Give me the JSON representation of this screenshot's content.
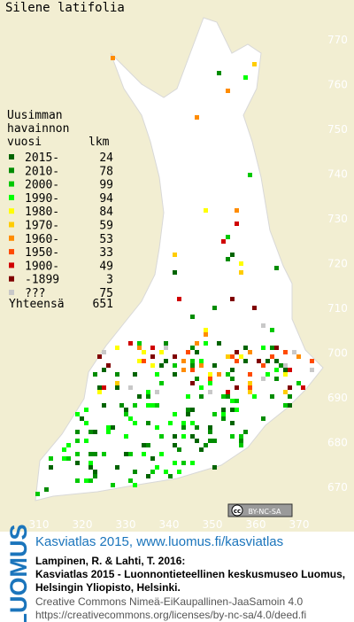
{
  "title": "Silene latifolia",
  "legend": {
    "heading": [
      "Uusimman",
      "havainnon"
    ],
    "year_header": "vuosi",
    "count_header": "lkm",
    "rows": [
      {
        "label": "2015-",
        "count": 24,
        "color": "#006400"
      },
      {
        "label": "2010-",
        "count": 78,
        "color": "#008c00"
      },
      {
        "label": "2000-",
        "count": 99,
        "color": "#00c800"
      },
      {
        "label": "1990-",
        "count": 94,
        "color": "#00ff00"
      },
      {
        "label": "1980-",
        "count": 84,
        "color": "#ffff00"
      },
      {
        "label": "1970-",
        "count": 59,
        "color": "#ffcc00"
      },
      {
        "label": "1960-",
        "count": 53,
        "color": "#ff8c00"
      },
      {
        "label": "1950-",
        "count": 33,
        "color": "#ff4a00"
      },
      {
        "label": "1900-",
        "count": 49,
        "color": "#d00000"
      },
      {
        "label": "-1899",
        "count": 3,
        "color": "#800000"
      },
      {
        "label": "???",
        "count": 75,
        "color": "#c8c8c8"
      }
    ],
    "total_label": "Yhteensä",
    "total": 651
  },
  "grid": {
    "x_labels": [
      310,
      320,
      330,
      340,
      350,
      360,
      370
    ],
    "y_labels": [
      670,
      680,
      690,
      700,
      710,
      720,
      730,
      740,
      750,
      760,
      770
    ]
  },
  "license_badge": {
    "cc": "cc",
    "terms": "BY-NC-SA"
  },
  "footer": {
    "logo": "LUOMUS",
    "atlas": "Kasviatlas 2015, www.luomus.fi/kasviatlas",
    "citation": [
      "Lampinen, R. & Lahti, T. 2016:",
      "Kasviatlas 2015 - Luonnontieteellinen keskusmuseo Luomus,",
      "Helsingin Yliopisto, Helsinki."
    ],
    "license": [
      "Creative Commons Nimeä-EiKaupallinen-JaaSamoin 4.0",
      "https://creativecommons.org/licenses/by-nc-sa/4.0/deed.fi"
    ]
  }
}
